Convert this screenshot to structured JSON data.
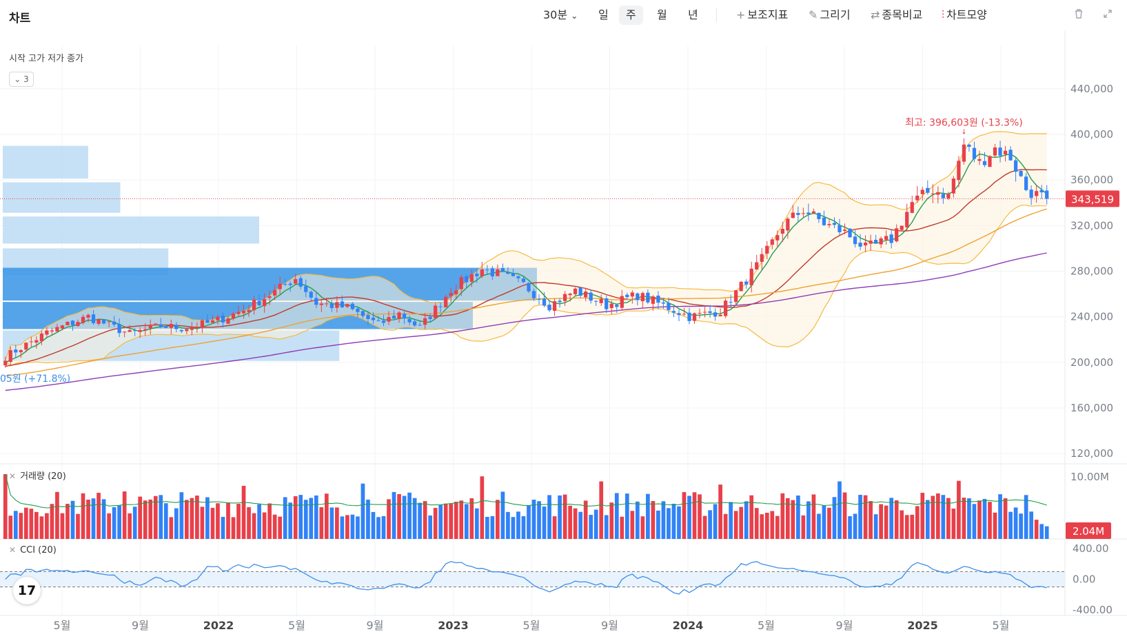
{
  "header": {
    "title": "차트",
    "interval_label": "30분",
    "periods": [
      "일",
      "주",
      "월",
      "년"
    ],
    "selected_period": "주",
    "tools": [
      {
        "icon": "plus-icon",
        "glyph": "+",
        "label": "보조지표"
      },
      {
        "icon": "pencil-icon",
        "glyph": "✎",
        "label": "그리기"
      },
      {
        "icon": "compare-icon",
        "glyph": "⇄",
        "label": "종목비교"
      },
      {
        "icon": "candle-chart-icon",
        "glyph": "⫶",
        "label": "차트모양"
      }
    ]
  },
  "legend": {
    "text": "시작 고가 저가 종가",
    "collapsed_count": "3"
  },
  "chart_data": {
    "type": "candlestick",
    "title": "",
    "x_tick_labels": [
      "5월",
      "9월",
      "2022",
      "5월",
      "9월",
      "2023",
      "5월",
      "9월",
      "2024",
      "5월",
      "9월",
      "2025",
      "5월"
    ],
    "price_axis": {
      "ticks": [
        "440,000",
        "400,000",
        "360,000",
        "320,000",
        "280,000",
        "240,000",
        "200,000",
        "160,000",
        "120,000"
      ],
      "ylim": [
        111000,
        478000
      ]
    },
    "current_price": 343519,
    "current_price_label": "343,519",
    "high_annotation": {
      "text": "최고: 396,603원 (-13.3%)",
      "value": 396603
    },
    "low_annotation": {
      "text": "05원 (+71.8%)"
    },
    "candle_anchors": [
      [
        0,
        205000
      ],
      [
        8,
        226000
      ],
      [
        16,
        240000
      ],
      [
        24,
        225000
      ],
      [
        30,
        232000
      ],
      [
        34,
        230000
      ],
      [
        40,
        235000
      ],
      [
        46,
        246000
      ],
      [
        52,
        262000
      ],
      [
        56,
        274000
      ],
      [
        60,
        252000
      ],
      [
        66,
        248000
      ],
      [
        72,
        233000
      ],
      [
        76,
        243000
      ],
      [
        80,
        230000
      ],
      [
        86,
        264000
      ],
      [
        92,
        282000
      ],
      [
        96,
        276000
      ],
      [
        100,
        268000
      ],
      [
        105,
        250000
      ],
      [
        110,
        263000
      ],
      [
        116,
        250000
      ],
      [
        122,
        259000
      ],
      [
        127,
        250000
      ],
      [
        132,
        240000
      ],
      [
        138,
        245000
      ],
      [
        142,
        267000
      ],
      [
        146,
        290000
      ],
      [
        150,
        320000
      ],
      [
        154,
        334000
      ],
      [
        158,
        322000
      ],
      [
        162,
        314000
      ],
      [
        166,
        300000
      ],
      [
        171,
        308000
      ],
      [
        175,
        340000
      ],
      [
        179,
        352000
      ],
      [
        182,
        346000
      ],
      [
        185,
        391000
      ],
      [
        188,
        375000
      ],
      [
        191,
        388000
      ],
      [
        194,
        380000
      ],
      [
        197,
        352000
      ],
      [
        199,
        347000
      ],
      [
        201,
        343519
      ]
    ],
    "moving_averages": [
      {
        "name": "MA5",
        "color": "#1e9e4a"
      },
      {
        "name": "MA20",
        "color": "#c0392b"
      },
      {
        "name": "MA60",
        "color": "#f0a030"
      },
      {
        "name": "MA120",
        "color": "#8e3bb5"
      }
    ],
    "bollinger": {
      "period": 20,
      "color": "#f5b940"
    },
    "volume": {
      "label": "거래량 (20)",
      "tick": "10.00M",
      "current_label": "2.04M",
      "ylim": [
        0,
        12000000
      ]
    },
    "cci": {
      "label": "CCI (20)",
      "ticks": [
        "400.00",
        "0.00",
        "-400.00"
      ],
      "ylim": [
        -400,
        400
      ],
      "bands": [
        100,
        -100
      ]
    },
    "volume_profile": [
      {
        "price_low": 360000,
        "price_high": 390000,
        "strength": 0.16
      },
      {
        "price_low": 330000,
        "price_high": 358000,
        "strength": 0.22
      },
      {
        "price_low": 303000,
        "price_high": 328000,
        "strength": 0.48
      },
      {
        "price_low": 275000,
        "price_high": 300000,
        "strength": 0.31
      },
      {
        "price_low": 253000,
        "price_high": 283000,
        "strength": 1.0,
        "highlight": true
      },
      {
        "price_low": 228000,
        "price_high": 253000,
        "strength": 0.88,
        "highlight": true
      },
      {
        "price_low": 200000,
        "price_high": 228000,
        "strength": 0.63
      }
    ]
  }
}
